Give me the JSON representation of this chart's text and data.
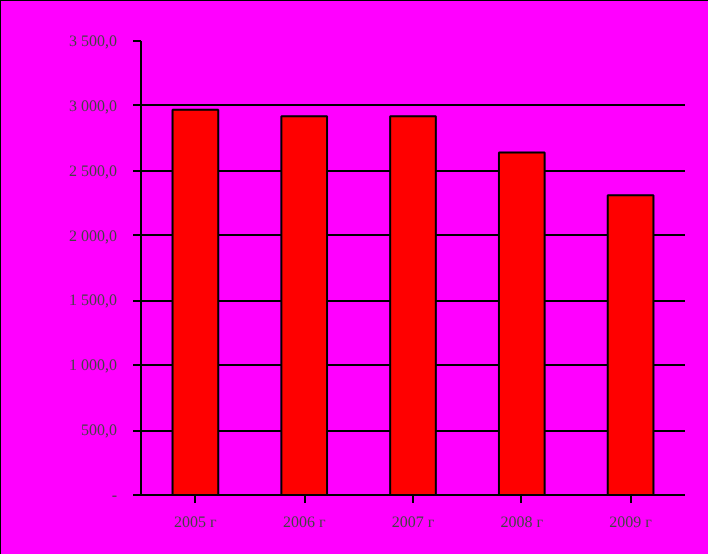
{
  "chart_data": {
    "type": "bar",
    "categories": [
      "2005 г",
      "2006 г",
      "2007 г",
      "2008 г",
      "2009 г"
    ],
    "values": [
      2970,
      2920,
      2920,
      2640,
      2310
    ],
    "color": "#ff0000",
    "ylim": [
      0,
      3500
    ],
    "yticks": [
      {
        "value": 0,
        "label": "-"
      },
      {
        "value": 500,
        "label": "500,0"
      },
      {
        "value": 1000,
        "label": "1 000,0"
      },
      {
        "value": 1500,
        "label": "1 500,0"
      },
      {
        "value": 2000,
        "label": "2 000,0"
      },
      {
        "value": 2500,
        "label": "2 500,0"
      },
      {
        "value": 3000,
        "label": "3 000,0"
      },
      {
        "value": 3500,
        "label": "3 500,0"
      }
    ],
    "grid": "y"
  }
}
